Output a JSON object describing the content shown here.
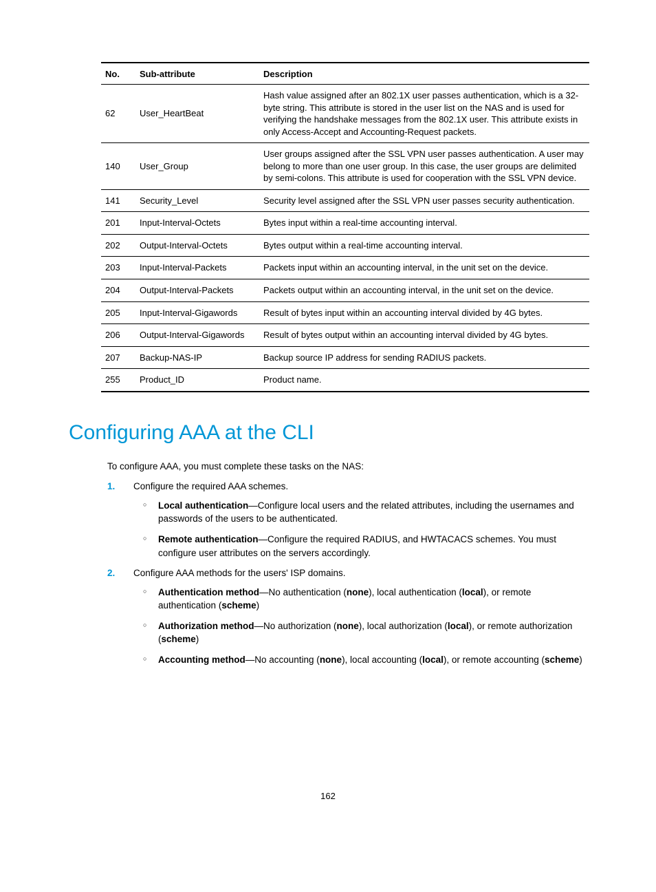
{
  "table": {
    "headers": {
      "no": "No.",
      "sub": "Sub-attribute",
      "desc": "Description"
    },
    "rows": [
      {
        "no": "62",
        "sub": "User_HeartBeat",
        "desc": "Hash value assigned after an 802.1X user passes authentication, which is a 32-byte string. This attribute is stored in the user list on the NAS and is used for verifying the handshake messages from the 802.1X user. This attribute exists in only Access-Accept and Accounting-Request packets."
      },
      {
        "no": "140",
        "sub": "User_Group",
        "desc": "User groups assigned after the SSL VPN user passes authentication. A user may belong to more than one user group. In this case, the user groups are delimited by semi-colons. This attribute is used for cooperation with the SSL VPN device."
      },
      {
        "no": "141",
        "sub": "Security_Level",
        "desc": "Security level assigned after the SSL VPN user passes security authentication."
      },
      {
        "no": "201",
        "sub": "Input-Interval-Octets",
        "desc": "Bytes input within a real-time accounting interval."
      },
      {
        "no": "202",
        "sub": "Output-Interval-Octets",
        "desc": "Bytes output within a real-time accounting interval."
      },
      {
        "no": "203",
        "sub": "Input-Interval-Packets",
        "desc": "Packets input within an accounting interval, in the unit set on the device."
      },
      {
        "no": "204",
        "sub": "Output-Interval-Packets",
        "desc": "Packets output within an accounting interval, in the unit set on the device."
      },
      {
        "no": "205",
        "sub": "Input-Interval-Gigawords",
        "desc": "Result of bytes input within an accounting interval divided by 4G bytes."
      },
      {
        "no": "206",
        "sub": "Output-Interval-Gigawords",
        "desc": "Result of bytes output within an accounting interval divided by 4G bytes."
      },
      {
        "no": "207",
        "sub": "Backup-NAS-IP",
        "desc": "Backup source IP address for sending RADIUS packets."
      },
      {
        "no": "255",
        "sub": "Product_ID",
        "desc": "Product name."
      }
    ]
  },
  "heading": "Configuring AAA at the CLI",
  "intro": "To configure AAA, you must complete these tasks on the NAS:",
  "list": [
    {
      "num": "1.",
      "text": "Configure the required AAA schemes.",
      "subs": [
        {
          "bold": "Local authentication",
          "rest": "—Configure local users and the related attributes, including the usernames and passwords of the users to be authenticated."
        },
        {
          "bold": "Remote authentication",
          "rest": "—Configure the required RADIUS, and HWTACACS schemes. You must configure user attributes on the servers accordingly."
        }
      ]
    },
    {
      "num": "2.",
      "text": "Configure AAA methods for the users' ISP domains.",
      "subs": [
        {
          "bold": "Authentication method",
          "rest_parts": [
            "—No authentication (",
            "none",
            "), local authentication (",
            "local",
            "), or remote authentication (",
            "scheme",
            ")"
          ]
        },
        {
          "bold": "Authorization method",
          "rest_parts": [
            "—No authorization (",
            "none",
            "), local authorization (",
            "local",
            "), or remote authorization (",
            "scheme",
            ")"
          ]
        },
        {
          "bold": "Accounting method",
          "rest_parts": [
            "—No accounting (",
            "none",
            "), local accounting (",
            "local",
            "), or remote accounting (",
            "scheme",
            ")"
          ]
        }
      ]
    }
  ],
  "page_number": "162",
  "colors": {
    "accent": "#0096d6"
  }
}
